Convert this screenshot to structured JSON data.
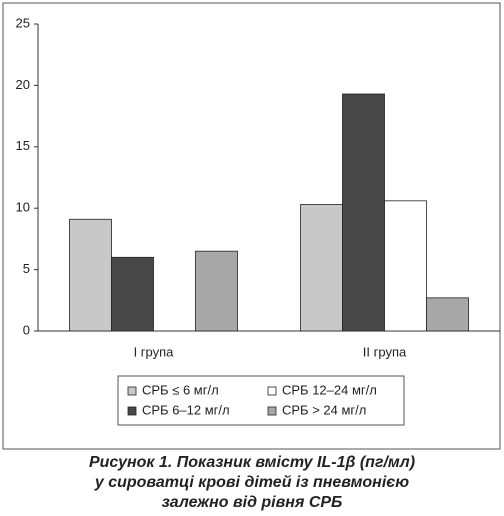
{
  "chart_data": {
    "type": "bar",
    "caption": [
      "Рисунок 1. Показник вмісту IL-1β (пг/мл)",
      "у сироватці крові дітей із пневмонією",
      "залежно від рівня СРБ"
    ],
    "categories": [
      "I група",
      "II група"
    ],
    "series": [
      {
        "name": "СРБ ≤ 6 мг/л",
        "color": "#c8c8c8",
        "values": [
          9.1,
          10.3
        ]
      },
      {
        "name": "СРБ 6–12 мг/л",
        "color": "#484848",
        "values": [
          6.0,
          19.3
        ]
      },
      {
        "name": "СРБ 12–24 мг/л",
        "color": "#ffffff",
        "values": [
          null,
          10.6
        ]
      },
      {
        "name": "СРБ > 24 мг/л",
        "color": "#a8a8a8",
        "values": [
          6.5,
          2.7
        ]
      }
    ],
    "ylim": [
      0,
      25
    ],
    "yticks": [
      0,
      5,
      10,
      15,
      20,
      25
    ],
    "grid": false
  }
}
